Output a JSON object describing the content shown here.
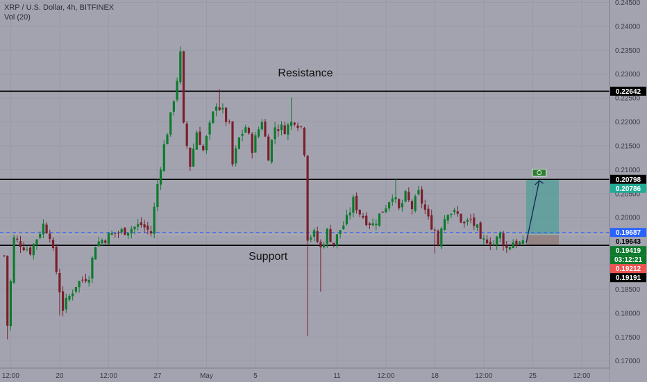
{
  "chart_data": {
    "type": "candlestick",
    "title": "XRP / U.S. Dollar, 4h, BITFINEX",
    "subtitle": "Vol (20)",
    "ylim": [
      0.1685,
      0.2455
    ],
    "y_ticks": [
      0.17,
      0.175,
      0.18,
      0.185,
      0.19,
      0.195,
      0.2,
      0.205,
      0.21,
      0.215,
      0.22,
      0.225,
      0.23,
      0.235,
      0.24,
      0.245
    ],
    "y_tick_labels": [
      "0.17000",
      "0.17500",
      "0.18000",
      "0.18500",
      "0.19000",
      "0.19500",
      "0.20000",
      "0.20500",
      "0.21000",
      "0.21500",
      "0.22000",
      "0.22500",
      "0.23000",
      "0.23500",
      "0.24000",
      "0.24500"
    ],
    "x_tick_labels": [
      "12:00",
      "20",
      "12:00",
      "27",
      "May",
      "5",
      "11",
      "12:00",
      "18",
      "12:00",
      "25",
      "12:00"
    ],
    "candle_count": 170,
    "x_tick_positions": [
      2,
      17,
      32,
      47,
      62,
      77,
      102,
      117,
      132,
      147,
      162,
      177
    ],
    "x_tick_note": "Position of each x tick label, in candle index units; the label's own string is in x_tick_labels.",
    "horizontal_levels": [
      {
        "value": 0.22642,
        "label": "0.22642",
        "style": "solid",
        "color": "#000000"
      },
      {
        "value": 0.20798,
        "label": "0.20798",
        "style": "solid",
        "color": "#000000"
      },
      {
        "value": 0.19419,
        "label": "",
        "style": "solid",
        "color": "#000000"
      },
      {
        "value": 0.19687,
        "label": "0.19687",
        "style": "dashed",
        "color": "#2962ff"
      },
      {
        "value": 0.19643,
        "label": "0.19643",
        "style": "thin",
        "color": "#b0b0b0"
      }
    ],
    "price_tags": [
      {
        "value": 0.22642,
        "label": "0.22642",
        "bg": "#000000",
        "fg": "#ffffff"
      },
      {
        "value": 0.20798,
        "label": "0.20798",
        "bg": "#000000",
        "fg": "#ffffff"
      },
      {
        "value": 0.20786,
        "label": "0.20786",
        "bg": "#22ab94",
        "fg": "#ffffff"
      },
      {
        "value": 0.19687,
        "label": "0.19687",
        "bg": "#2962ff",
        "fg": "#ffffff"
      },
      {
        "value": 0.19643,
        "label": "0.19643",
        "bg": "#a3a3b0",
        "fg": "#000000"
      },
      {
        "value": 0.19419,
        "label": "0.19419",
        "bg": "#0d7a2c",
        "fg": "#ffffff"
      },
      {
        "value": 0.1929,
        "label": "03:12:21",
        "bg": "#0d7a2c",
        "fg": "#ffffff"
      },
      {
        "value": 0.19212,
        "label": "0.19212",
        "bg": "#ef5350",
        "fg": "#ffffff"
      },
      {
        "value": 0.19191,
        "label": "0.19191",
        "bg": "#000000",
        "fg": "#ffffff"
      }
    ],
    "annotations": [
      {
        "text": "Resistance",
        "x": 52,
        "y": 0.2295
      },
      {
        "text": "Support",
        "x": 43,
        "y": 0.1912
      }
    ],
    "position_box": {
      "x_start": 160,
      "x_end": 170,
      "entry": 0.19419,
      "target": 0.20786,
      "stop": 0.19643,
      "profit_color": "#1a9c8a",
      "loss_color": "#ef5350"
    },
    "arrow": {
      "from": [
        160,
        0.1947
      ],
      "to": [
        164,
        0.2077
      ],
      "color": "#1a2a5a"
    },
    "icon": {
      "name": "cash-icon",
      "x": 164,
      "y": 0.2094
    },
    "colors": {
      "up": "#0d7a2c",
      "down": "#7a1f2b",
      "background": "#a3a3b0",
      "grid": "#9a9aa8"
    },
    "anchors": [
      [
        0,
        0.192
      ],
      [
        1,
        0.1775
      ],
      [
        3,
        0.1955
      ],
      [
        8,
        0.193
      ],
      [
        12,
        0.1985
      ],
      [
        14,
        0.1965
      ],
      [
        18,
        0.181
      ],
      [
        22,
        0.186
      ],
      [
        26,
        0.188
      ],
      [
        28,
        0.1945
      ],
      [
        33,
        0.1965
      ],
      [
        38,
        0.1975
      ],
      [
        42,
        0.1985
      ],
      [
        45,
        0.1968
      ],
      [
        47,
        0.207
      ],
      [
        49,
        0.215
      ],
      [
        51,
        0.221
      ],
      [
        53,
        0.229
      ],
      [
        54,
        0.234
      ],
      [
        55,
        0.219
      ],
      [
        57,
        0.211
      ],
      [
        59,
        0.218
      ],
      [
        61,
        0.214
      ],
      [
        63,
        0.219
      ],
      [
        65,
        0.224
      ],
      [
        67,
        0.222
      ],
      [
        69,
        0.219
      ],
      [
        70,
        0.211
      ],
      [
        72,
        0.2165
      ],
      [
        74,
        0.219
      ],
      [
        76,
        0.2145
      ],
      [
        79,
        0.2205
      ],
      [
        81,
        0.213
      ],
      [
        83,
        0.219
      ],
      [
        86,
        0.2185
      ],
      [
        89,
        0.2205
      ],
      [
        91,
        0.219
      ],
      [
        92,
        0.214
      ],
      [
        93,
        0.196
      ],
      [
        95,
        0.1965
      ],
      [
        97,
        0.1935
      ],
      [
        99,
        0.197
      ],
      [
        101,
        0.1945
      ],
      [
        103,
        0.1975
      ],
      [
        105,
        0.1995
      ],
      [
        107,
        0.2035
      ],
      [
        109,
        0.201
      ],
      [
        111,
        0.1995
      ],
      [
        113,
        0.1985
      ],
      [
        115,
        0.2005
      ],
      [
        117,
        0.2025
      ],
      [
        119,
        0.205
      ],
      [
        121,
        0.2015
      ],
      [
        123,
        0.2045
      ],
      [
        125,
        0.202
      ],
      [
        127,
        0.205
      ],
      [
        129,
        0.2015
      ],
      [
        130,
        0.1995
      ],
      [
        132,
        0.1975
      ],
      [
        133,
        0.1945
      ],
      [
        134,
        0.1985
      ],
      [
        136,
        0.2015
      ],
      [
        139,
        0.2005
      ],
      [
        141,
        0.1985
      ],
      [
        143,
        0.1995
      ],
      [
        145,
        0.1975
      ],
      [
        146,
        0.1945
      ],
      [
        148,
        0.1955
      ],
      [
        150,
        0.1945
      ],
      [
        152,
        0.1965
      ],
      [
        154,
        0.1935
      ],
      [
        156,
        0.195
      ],
      [
        158,
        0.1945
      ],
      [
        159,
        0.1942
      ]
    ],
    "anchor_note": "Approximate close-price path read from the chart: [candle index, price]. Individual candles are interpolated between these reference points.",
    "spikes": [
      {
        "i": 1,
        "low": 0.1745
      },
      {
        "i": 17,
        "low": 0.1795
      },
      {
        "i": 54,
        "high": 0.2358
      },
      {
        "i": 66,
        "high": 0.2268
      },
      {
        "i": 88,
        "high": 0.2251
      },
      {
        "i": 93,
        "low": 0.1752
      },
      {
        "i": 97,
        "low": 0.1845
      },
      {
        "i": 120,
        "high": 0.2082
      },
      {
        "i": 132,
        "low": 0.1925
      },
      {
        "i": 154,
        "low": 0.1926
      }
    ]
  }
}
